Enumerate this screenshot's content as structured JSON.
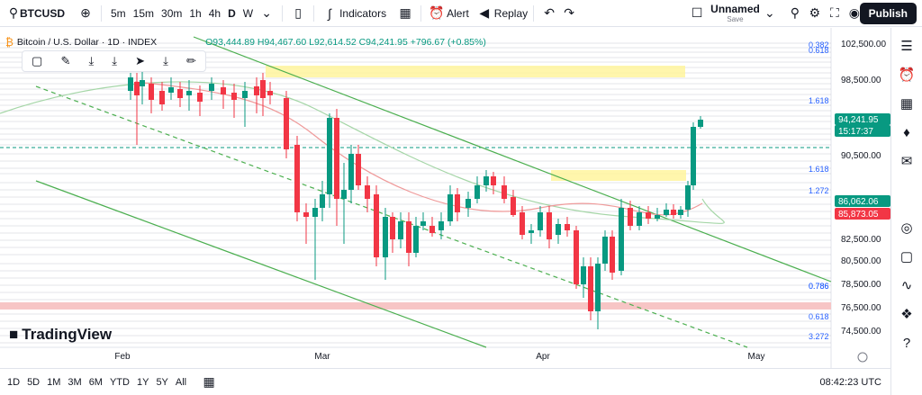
{
  "topbar": {
    "symbol": "BTCUSD",
    "intervals": [
      "5m",
      "15m",
      "30m",
      "1h",
      "4h",
      "D",
      "W"
    ],
    "active_interval": "D",
    "indicators": "Indicators",
    "alert": "Alert",
    "replay": "Replay",
    "layout_name": "Unnamed",
    "layout_status": "Save",
    "publish": "Publish"
  },
  "legend": {
    "title": "Bitcoin / U.S. Dollar · 1D · INDEX",
    "ohlc": "O93,444.89 H94,467.60 L92,614.52 C94,241.95 +796.67 (+0.85%)"
  },
  "price_axis": {
    "labels": [
      "102,500.00",
      "98,500.00",
      "90,500.00",
      "82,500.00",
      "80,500.00",
      "78,500.00",
      "76,500.00",
      "74,500.00"
    ],
    "current_price": "94,241.95",
    "countdown": "15:17:37",
    "tag2": "86,062.06",
    "tag3": "85,873.05"
  },
  "fib_labels": [
    "0.382",
    "0.618",
    "1.618",
    "0.786",
    "1.618",
    "1.272",
    "0.786",
    "0.618",
    "3.272"
  ],
  "time_axis": {
    "labels": [
      "Feb",
      "Mar",
      "Apr",
      "May"
    ]
  },
  "bottombar": {
    "ranges": [
      "1D",
      "5D",
      "1M",
      "3M",
      "6M",
      "YTD",
      "1Y",
      "5Y",
      "All"
    ],
    "clock": "08:42:23 UTC"
  },
  "logo": {
    "text": "TradingView"
  },
  "colors": {
    "up": "#089981",
    "down": "#f23645",
    "accent": "#2962ff",
    "channel": "#4caf50",
    "zone": "#fff59d",
    "resistance": "#f7c5c5"
  },
  "chart_data": {
    "type": "candlestick",
    "ylim": [
      74000,
      104000
    ]
  }
}
